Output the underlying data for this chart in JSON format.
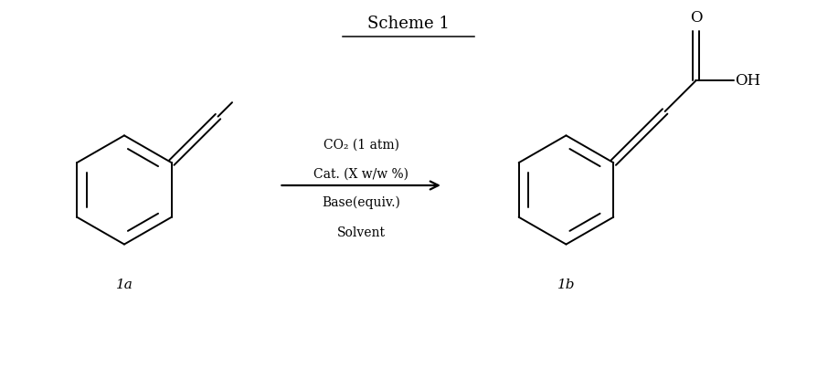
{
  "title": "Scheme 1",
  "title_fontsize": 13,
  "label_1a": "1a",
  "label_1b": "1b",
  "reaction_lines": [
    "CO₂ (1 atm)",
    "Cat. (X w/w %)",
    "Base(equiv.)",
    "Solvent"
  ],
  "bg_color": "#ffffff",
  "line_color": "#000000",
  "text_fontsize": 11,
  "fig_width": 8.94,
  "fig_height": 4.03,
  "dpi": 100
}
